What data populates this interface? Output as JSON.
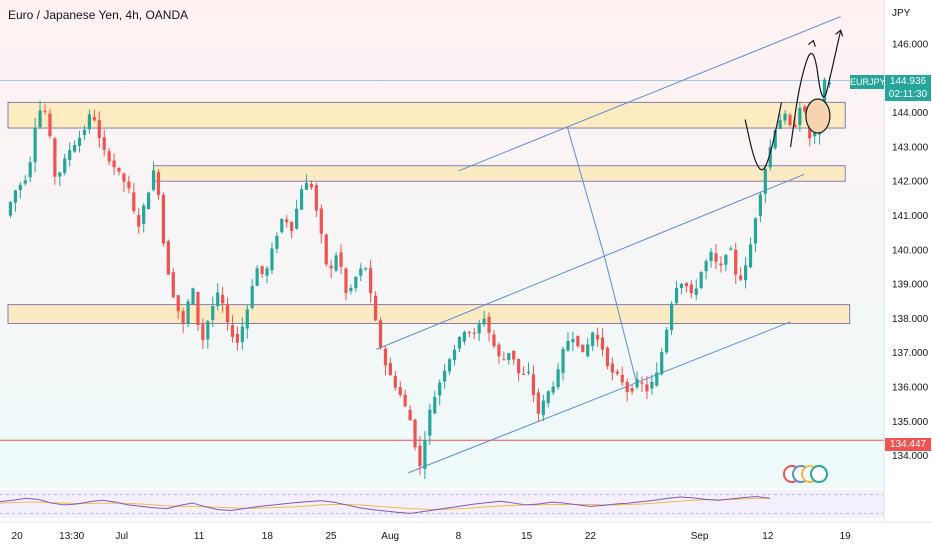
{
  "header": {
    "title": "Euro / Japanese Yen, 4h, OANDA"
  },
  "axis": {
    "currency": "JPY"
  },
  "badges": {
    "symbol": "EURJPY",
    "last_price": "144.936",
    "countdown": "02:11:30",
    "level_price": "134.447"
  },
  "colors": {
    "bull": "#26a69a",
    "bear": "#ef5350",
    "zone_fill": "#fde9b8",
    "zone_border": "#6b5fa8",
    "channel": "#5b8dd6",
    "support_line": "#ef5350",
    "rsi": "#7e57c2",
    "rsi_ma": "#f5b942"
  },
  "chart_data": {
    "type": "candlestick",
    "title": "Euro / Japanese Yen, 4h, OANDA",
    "ylabel": "JPY",
    "ylim": [
      133.0,
      146.8
    ],
    "yticks": [
      134,
      135,
      136,
      137,
      138,
      139,
      140,
      141,
      142,
      143,
      144,
      145,
      146
    ],
    "ytick_labels": [
      "134.000",
      "135.000",
      "136.000",
      "137.000",
      "138.000",
      "139.000",
      "140.000",
      "141.000",
      "142.000",
      "143.000",
      "144.000",
      "145.000",
      "146.000"
    ],
    "xticks": [
      "20",
      "13:30",
      "Jul",
      "11",
      "18",
      "25",
      "Aug",
      "8",
      "15",
      "22",
      "Sep",
      "12",
      "19"
    ],
    "x_index_range": [
      0,
      184
    ],
    "xtick_index": [
      2,
      14,
      25,
      42,
      57,
      71,
      84,
      99,
      114,
      128,
      152,
      167,
      184
    ],
    "bars_count": 167,
    "anchors": [
      [
        0,
        141.0
      ],
      [
        2,
        141.7
      ],
      [
        5,
        142.2
      ],
      [
        7,
        144.1
      ],
      [
        9,
        144.0
      ],
      [
        11,
        142.0
      ],
      [
        14,
        142.9
      ],
      [
        17,
        143.4
      ],
      [
        19,
        144.1
      ],
      [
        21,
        143.0
      ],
      [
        24,
        142.4
      ],
      [
        27,
        141.8
      ],
      [
        29,
        140.6
      ],
      [
        32,
        142.0
      ],
      [
        33,
        142.5
      ],
      [
        35,
        139.8
      ],
      [
        37,
        138.6
      ],
      [
        39,
        137.8
      ],
      [
        41,
        139.0
      ],
      [
        43,
        137.2
      ],
      [
        45,
        138.2
      ],
      [
        47,
        138.8
      ],
      [
        49,
        137.7
      ],
      [
        51,
        137.3
      ],
      [
        53,
        138.2
      ],
      [
        55,
        139.5
      ],
      [
        57,
        139.2
      ],
      [
        59,
        140.2
      ],
      [
        61,
        141.0
      ],
      [
        63,
        140.6
      ],
      [
        65,
        141.8
      ],
      [
        67,
        142.0
      ],
      [
        69,
        140.7
      ],
      [
        71,
        139.2
      ],
      [
        73,
        140.0
      ],
      [
        75,
        138.6
      ],
      [
        77,
        139.2
      ],
      [
        79,
        139.6
      ],
      [
        81,
        138.1
      ],
      [
        83,
        136.8
      ],
      [
        85,
        136.2
      ],
      [
        87,
        135.7
      ],
      [
        89,
        135.0
      ],
      [
        91,
        133.6
      ],
      [
        93,
        135.2
      ],
      [
        95,
        136.0
      ],
      [
        97,
        136.7
      ],
      [
        99,
        137.2
      ],
      [
        101,
        137.7
      ],
      [
        103,
        137.5
      ],
      [
        105,
        138.1
      ],
      [
        107,
        137.3
      ],
      [
        109,
        136.7
      ],
      [
        111,
        137.1
      ],
      [
        113,
        136.3
      ],
      [
        115,
        136.4
      ],
      [
        117,
        135.2
      ],
      [
        119,
        135.8
      ],
      [
        121,
        136.2
      ],
      [
        123,
        137.3
      ],
      [
        125,
        137.5
      ],
      [
        127,
        136.9
      ],
      [
        129,
        137.6
      ],
      [
        131,
        137.2
      ],
      [
        133,
        136.4
      ],
      [
        135,
        136.3
      ],
      [
        137,
        135.8
      ],
      [
        139,
        136.2
      ],
      [
        141,
        135.9
      ],
      [
        143,
        136.3
      ],
      [
        145,
        137.5
      ],
      [
        147,
        138.9
      ],
      [
        149,
        139.1
      ],
      [
        151,
        138.6
      ],
      [
        153,
        139.4
      ],
      [
        155,
        139.9
      ],
      [
        157,
        139.4
      ],
      [
        159,
        140.2
      ],
      [
        161,
        139.0
      ],
      [
        163,
        139.6
      ],
      [
        165,
        141.1
      ],
      [
        167,
        142.4
      ],
      [
        169,
        143.5
      ],
      [
        171,
        144.0
      ],
      [
        173,
        143.4
      ],
      [
        175,
        144.4
      ],
      [
        177,
        143.1
      ],
      [
        179,
        143.8
      ],
      [
        180,
        144.9
      ]
    ],
    "zones": [
      {
        "from": 143.55,
        "to": 144.3,
        "x_start": 0,
        "x_end": 184
      },
      {
        "from": 142.0,
        "to": 142.45,
        "x_start": 32,
        "x_end": 184
      },
      {
        "from": 137.85,
        "to": 138.4,
        "x_start": 0,
        "x_end": 185
      }
    ],
    "horizontal_levels": [
      134.447,
      144.936
    ],
    "trendlines": [
      {
        "role": "channel-upper-projection",
        "points": [
          [
            99,
            142.3
          ],
          [
            183,
            146.8
          ]
        ]
      },
      {
        "role": "channel-mid",
        "points": [
          [
            81,
            137.1
          ],
          [
            175,
            142.2
          ]
        ]
      },
      {
        "role": "channel-lower",
        "points": [
          [
            88,
            133.5
          ],
          [
            172,
            137.9
          ]
        ]
      },
      {
        "role": "measure-diag-1",
        "points": [
          [
            123,
            143.55
          ],
          [
            131,
            139.85
          ]
        ]
      },
      {
        "role": "measure-diag-2",
        "points": [
          [
            131,
            139.85
          ],
          [
            138,
            136.2
          ]
        ]
      }
    ],
    "projection_path": [
      [
        172,
        143.0
      ],
      [
        174,
        144.9
      ],
      [
        177,
        146.1
      ],
      [
        179,
        144.1
      ],
      [
        181,
        145.2
      ],
      [
        183,
        146.4
      ]
    ],
    "projection_dip": [
      [
        162,
        143.8
      ],
      [
        164,
        142.6
      ],
      [
        166,
        142.2
      ],
      [
        168,
        143.0
      ],
      [
        170,
        144.3
      ]
    ],
    "highlight_circle": {
      "x": 178,
      "y": 143.9
    },
    "rsi": {
      "ylim": [
        20,
        80
      ],
      "band": [
        30,
        70
      ],
      "values": [
        55,
        58,
        62,
        60,
        52,
        48,
        50,
        55,
        58,
        54,
        48,
        45,
        42,
        40,
        47,
        52,
        44,
        38,
        36,
        40,
        44,
        47,
        50,
        53,
        55,
        57,
        54,
        48,
        42,
        38,
        35,
        32,
        30,
        34,
        38,
        42,
        46,
        50,
        53,
        56,
        52,
        48,
        50,
        54,
        52,
        48,
        45,
        47,
        50,
        52,
        55,
        58,
        62,
        65,
        63,
        60,
        58,
        61,
        64,
        66,
        62
      ],
      "ma": [
        52,
        53,
        54,
        54,
        53,
        52,
        51,
        51,
        52,
        52,
        51,
        50,
        48,
        46,
        45,
        45,
        44,
        43,
        42,
        41,
        41,
        42,
        43,
        44,
        46,
        48,
        49,
        49,
        48,
        46,
        44,
        42,
        40,
        39,
        38,
        39,
        40,
        42,
        44,
        46,
        47,
        48,
        48,
        49,
        49,
        49,
        49,
        48,
        48,
        49,
        50,
        52,
        54,
        56,
        58,
        59,
        59,
        60,
        61,
        62,
        62
      ]
    }
  }
}
